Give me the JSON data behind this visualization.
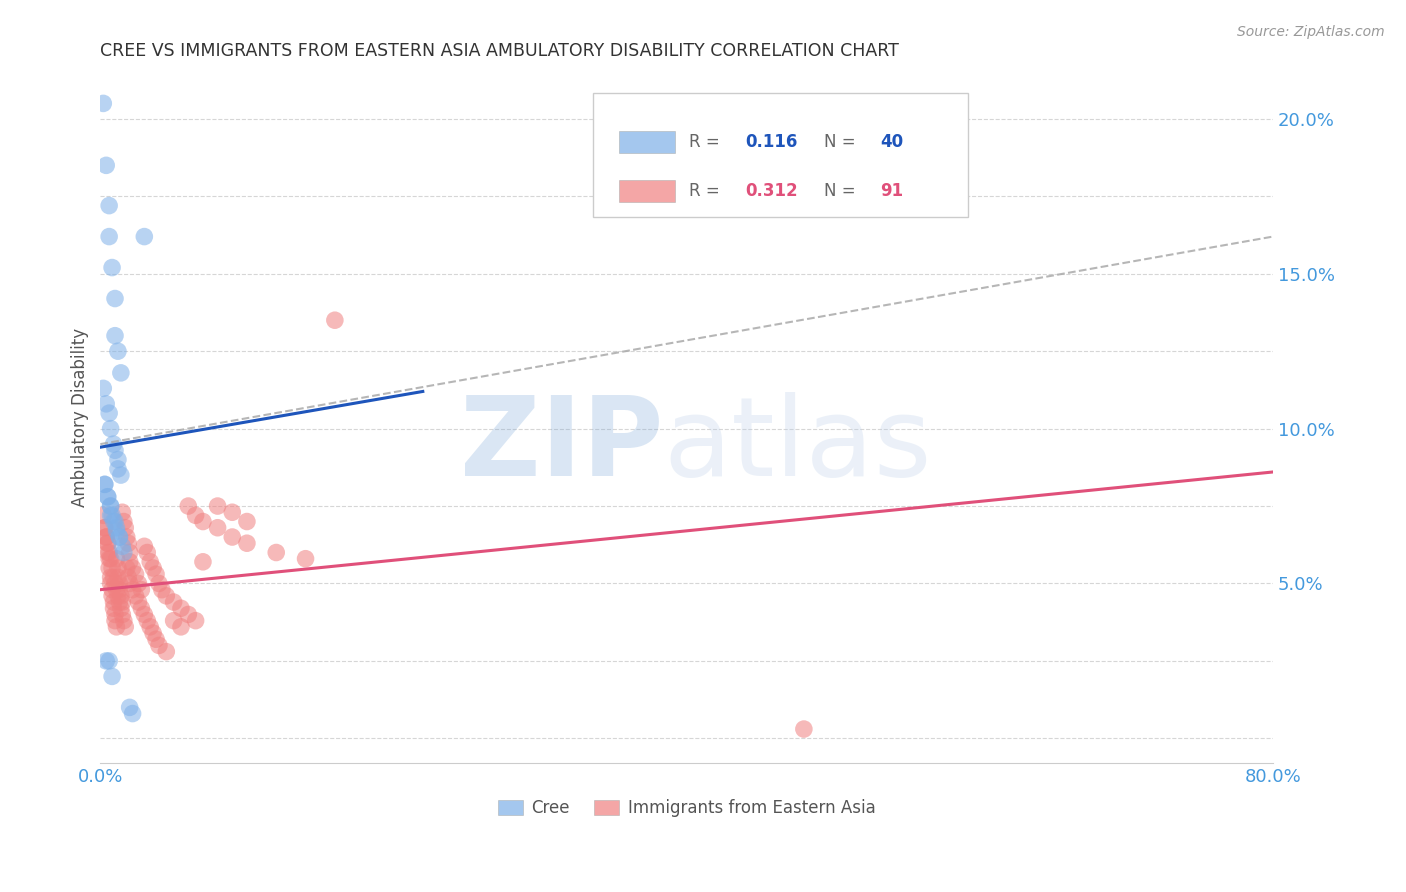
{
  "title": "CREE VS IMMIGRANTS FROM EASTERN ASIA AMBULATORY DISABILITY CORRELATION CHART",
  "source": "Source: ZipAtlas.com",
  "ylabel": "Ambulatory Disability",
  "xlim": [
    0.0,
    0.8
  ],
  "ylim": [
    -0.008,
    0.215
  ],
  "yticks": [
    0.05,
    0.1,
    0.15,
    0.2
  ],
  "ytick_labels": [
    "5.0%",
    "10.0%",
    "15.0%",
    "20.0%"
  ],
  "xticks": [
    0.0,
    0.1,
    0.2,
    0.3,
    0.4,
    0.5,
    0.6,
    0.7,
    0.8
  ],
  "xtick_labels": [
    "0.0%",
    "",
    "",
    "",
    "",
    "",
    "",
    "",
    "80.0%"
  ],
  "cree_color": "#7EB0E8",
  "immigrant_color": "#F08080",
  "cree_line_color": "#1E55BB",
  "immigrant_line_color": "#E0507A",
  "dashed_line_color": "#AAAAAA",
  "watermark_zip_color": "#7BA7D8",
  "watermark_atlas_color": "#B8CCE8",
  "tick_color": "#4499DD",
  "grid_color": "#CCCCCC",
  "cree_x": [
    0.002,
    0.004,
    0.006,
    0.006,
    0.008,
    0.01,
    0.01,
    0.012,
    0.014,
    0.002,
    0.004,
    0.006,
    0.007,
    0.009,
    0.01,
    0.012,
    0.012,
    0.014,
    0.003,
    0.005,
    0.007,
    0.007,
    0.009,
    0.011,
    0.013,
    0.03,
    0.003,
    0.005,
    0.007,
    0.008,
    0.01,
    0.011,
    0.013,
    0.015,
    0.016,
    0.004,
    0.006,
    0.008,
    0.02,
    0.022
  ],
  "cree_y": [
    0.205,
    0.185,
    0.172,
    0.162,
    0.152,
    0.142,
    0.13,
    0.125,
    0.118,
    0.113,
    0.108,
    0.105,
    0.1,
    0.095,
    0.093,
    0.09,
    0.087,
    0.085,
    0.082,
    0.078,
    0.075,
    0.072,
    0.07,
    0.067,
    0.065,
    0.162,
    0.082,
    0.078,
    0.075,
    0.072,
    0.07,
    0.068,
    0.065,
    0.062,
    0.06,
    0.025,
    0.025,
    0.02,
    0.01,
    0.008
  ],
  "immigrant_x": [
    0.002,
    0.003,
    0.004,
    0.005,
    0.005,
    0.006,
    0.006,
    0.007,
    0.007,
    0.008,
    0.008,
    0.009,
    0.009,
    0.01,
    0.01,
    0.011,
    0.011,
    0.012,
    0.012,
    0.013,
    0.013,
    0.014,
    0.015,
    0.015,
    0.016,
    0.017,
    0.018,
    0.019,
    0.02,
    0.02,
    0.022,
    0.024,
    0.026,
    0.028,
    0.03,
    0.032,
    0.034,
    0.036,
    0.038,
    0.04,
    0.042,
    0.045,
    0.05,
    0.055,
    0.06,
    0.065,
    0.07,
    0.08,
    0.09,
    0.1,
    0.003,
    0.004,
    0.005,
    0.006,
    0.007,
    0.008,
    0.009,
    0.01,
    0.011,
    0.012,
    0.013,
    0.014,
    0.015,
    0.016,
    0.017,
    0.018,
    0.019,
    0.02,
    0.022,
    0.024,
    0.026,
    0.028,
    0.03,
    0.032,
    0.034,
    0.036,
    0.038,
    0.04,
    0.045,
    0.05,
    0.055,
    0.06,
    0.065,
    0.07,
    0.08,
    0.09,
    0.1,
    0.12,
    0.14,
    0.16,
    0.48
  ],
  "immigrant_y": [
    0.072,
    0.068,
    0.065,
    0.063,
    0.06,
    0.058,
    0.055,
    0.052,
    0.05,
    0.048,
    0.046,
    0.044,
    0.042,
    0.04,
    0.038,
    0.036,
    0.058,
    0.055,
    0.052,
    0.05,
    0.048,
    0.046,
    0.044,
    0.073,
    0.07,
    0.068,
    0.065,
    0.063,
    0.06,
    0.057,
    0.055,
    0.053,
    0.05,
    0.048,
    0.062,
    0.06,
    0.057,
    0.055,
    0.053,
    0.05,
    0.048,
    0.046,
    0.044,
    0.042,
    0.04,
    0.038,
    0.057,
    0.075,
    0.073,
    0.07,
    0.068,
    0.065,
    0.063,
    0.06,
    0.058,
    0.055,
    0.052,
    0.05,
    0.048,
    0.046,
    0.044,
    0.042,
    0.04,
    0.038,
    0.036,
    0.055,
    0.052,
    0.05,
    0.048,
    0.046,
    0.044,
    0.042,
    0.04,
    0.038,
    0.036,
    0.034,
    0.032,
    0.03,
    0.028,
    0.038,
    0.036,
    0.075,
    0.072,
    0.07,
    0.068,
    0.065,
    0.063,
    0.06,
    0.058,
    0.135,
    0.003
  ],
  "cree_trend_x": [
    0.0,
    0.22
  ],
  "cree_trend_y": [
    0.094,
    0.112
  ],
  "immigrant_trend_x": [
    0.0,
    0.8
  ],
  "immigrant_trend_y": [
    0.048,
    0.086
  ],
  "dashed_trend_x": [
    0.0,
    0.8
  ],
  "dashed_trend_y": [
    0.095,
    0.162
  ]
}
